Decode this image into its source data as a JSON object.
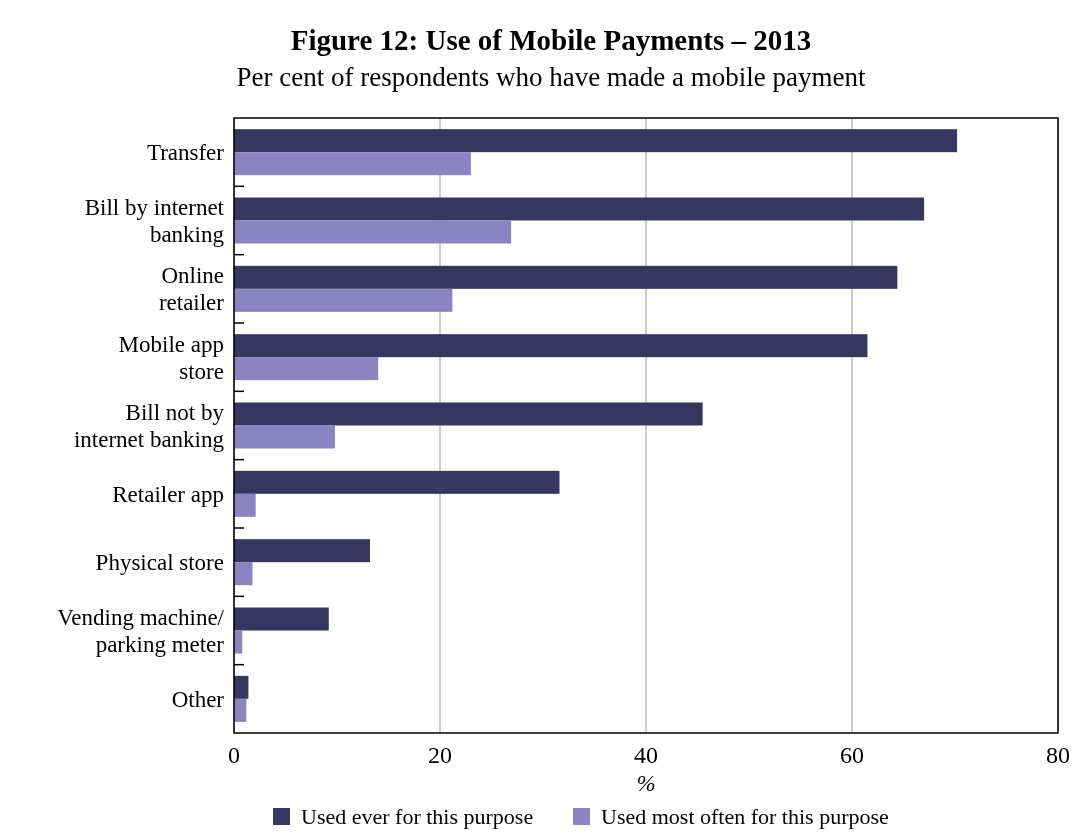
{
  "chart_data": {
    "type": "bar",
    "orientation": "horizontal",
    "title": "Figure 12: Use of Mobile Payments – 2013",
    "subtitle": "Per cent of respondents who have made a mobile payment",
    "xlabel": "%",
    "categories": [
      "Transfer",
      "Bill by internet\nbanking",
      "Online\nretailer",
      "Mobile app\nstore",
      "Bill not by\ninternet banking",
      "Retailer app",
      "Physical store",
      "Vending machine/\nparking meter",
      "Other"
    ],
    "series": [
      {
        "name": "Used ever for this purpose",
        "color": "#363761",
        "values": [
          70.2,
          67.0,
          64.4,
          61.5,
          45.5,
          31.6,
          13.2,
          9.2,
          1.4
        ]
      },
      {
        "name": "Used most often for this purpose",
        "color": "#8b83c2",
        "values": [
          23.0,
          26.9,
          21.2,
          14.0,
          9.8,
          2.1,
          1.8,
          0.8,
          1.2
        ]
      }
    ],
    "xlim": [
      0,
      80
    ],
    "xticks": [
      0,
      20,
      40,
      60,
      80
    ],
    "grid": "x",
    "legend": "bottom"
  }
}
